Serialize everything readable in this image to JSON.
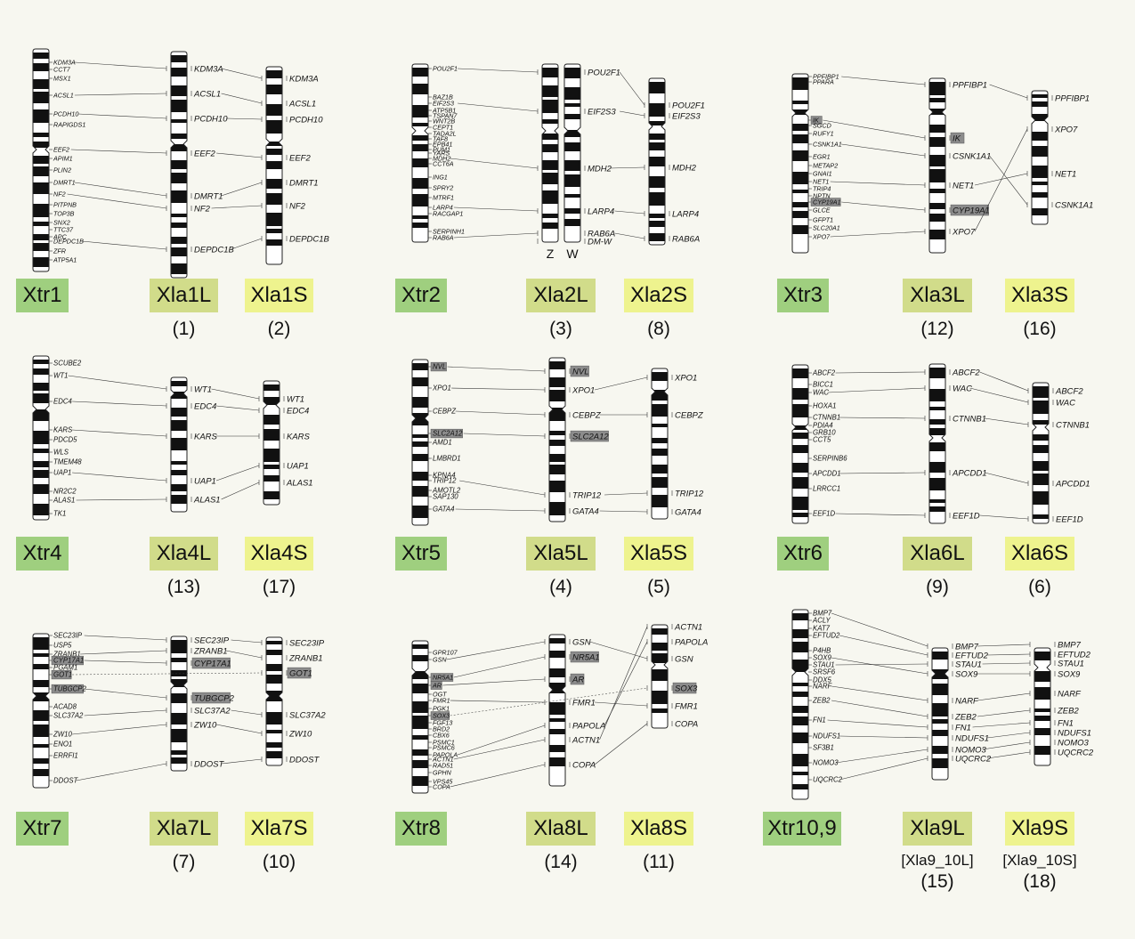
{
  "panels": [
    {
      "chroms": [
        {
          "label": "Xtr1",
          "genes": [
            "KDM3A",
            "CCT7",
            "MSX1",
            "ACSL1",
            "PCDH10",
            "RAPIGDS1",
            "EEF2",
            "APIM1",
            "PLIN2",
            "DMRT1",
            "NF2",
            "PITPNB",
            "TOP3B",
            "SNX2",
            "TTC37",
            "APC",
            "DEPDC1B",
            "ZFR",
            "ATP5A1"
          ]
        },
        {
          "label": "Xla1L",
          "num": "(1)",
          "genes": [
            "KDM3A",
            "ACSL1",
            "PCDH10",
            "EEF2",
            "DMRT1",
            "NF2",
            "DEPDC1B"
          ]
        },
        {
          "label": "Xla1S",
          "num": "(2)",
          "genes": [
            "KDM3A",
            "ACSL1",
            "PCDH10",
            "EEF2",
            "DMRT1",
            "NF2",
            "DEPDC1B"
          ]
        }
      ]
    },
    {
      "chroms": [
        {
          "label": "Xtr2",
          "genes": [
            "POU2F1",
            "BAZ1B",
            "EIF2S3",
            "ATP5B1",
            "TSPAN7",
            "WNT2B",
            "CEPT1",
            "TADA2L",
            "TAF8",
            "EPB41",
            "PUM1",
            "YARS",
            "MDH2",
            "CCT6A",
            "ING1",
            "SPRY2",
            "MTRF1",
            "LARP4",
            "RACGAP1",
            "SERPINH1",
            "RAB6A"
          ]
        },
        {
          "label": "Xla2L",
          "num": "(3)",
          "genes": [
            "POU2F1",
            "EIF2S3",
            "MDH2",
            "LARP4",
            "RAB6A",
            "DM-W"
          ],
          "sub": [
            "Z",
            "W"
          ]
        },
        {
          "label": "Xla2S",
          "num": "(8)",
          "genes": [
            "POU2F1",
            "EIF2S3",
            "MDH2",
            "LARP4",
            "RAB6A"
          ]
        }
      ]
    },
    {
      "chroms": [
        {
          "label": "Xtr3",
          "genes": [
            "PPFIBP1",
            "PPARA",
            "IK",
            "SGCD",
            "RUFY1",
            "CSNK1A1",
            "EGR1",
            "METAP2",
            "GNAI1",
            "NET1",
            "TRIP4",
            "NPTN",
            "CYP19A1",
            "GLCE",
            "GFPT1",
            "SLC20A1",
            "XPO7"
          ]
        },
        {
          "label": "Xla3L",
          "num": "(12)",
          "genes": [
            "PPFIBP1",
            "IK",
            "CSNK1A1",
            "NET1",
            "CYP19A1",
            "XPO7"
          ]
        },
        {
          "label": "Xla3S",
          "num": "(16)",
          "genes": [
            "PPFIBP1",
            "XPO7",
            "NET1",
            "CSNK1A1"
          ]
        }
      ]
    },
    {
      "chroms": [
        {
          "label": "Xtr4",
          "genes": [
            "SCUBE2",
            "WT1",
            "EDC4",
            "KARS",
            "PDCD5",
            "WLS",
            "TMEM48",
            "UAP1",
            "NR2C2",
            "ALAS1",
            "TK1"
          ]
        },
        {
          "label": "Xla4L",
          "num": "(13)",
          "genes": [
            "WT1",
            "EDC4",
            "KARS",
            "UAP1",
            "ALAS1"
          ]
        },
        {
          "label": "Xla4S",
          "num": "(17)",
          "genes": [
            "WT1",
            "EDC4",
            "KARS",
            "UAP1",
            "ALAS1"
          ]
        }
      ]
    },
    {
      "chroms": [
        {
          "label": "Xtr5",
          "genes": [
            "NVL",
            "XPO1",
            "CEBPZ",
            "SLC2A12",
            "AMD1",
            "LMBRD1",
            "KPNA4",
            "TRIP12",
            "AMOTL2",
            "SAP130",
            "GATA4"
          ]
        },
        {
          "label": "Xla5L",
          "num": "(4)",
          "genes": [
            "NVL",
            "XPO1",
            "CEBPZ",
            "SLC2A12",
            "TRIP12",
            "GATA4"
          ]
        },
        {
          "label": "Xla5S",
          "num": "(5)",
          "genes": [
            "XPO1",
            "CEBPZ",
            "TRIP12",
            "GATA4"
          ]
        }
      ]
    },
    {
      "chroms": [
        {
          "label": "Xtr6",
          "genes": [
            "ABCF2",
            "BICC1",
            "WAC",
            "HOXA1",
            "CTNNB1",
            "PDIA4",
            "GRB10",
            "CCT5",
            "SERPINB6",
            "APCDD1",
            "LRRCC1",
            "EEF1D"
          ]
        },
        {
          "label": "Xla6L",
          "num": "(9)",
          "genes": [
            "ABCF2",
            "WAC",
            "CTNNB1",
            "APCDD1",
            "EEF1D"
          ]
        },
        {
          "label": "Xla6S",
          "num": "(6)",
          "genes": [
            "ABCF2",
            "WAC",
            "CTNNB1",
            "APCDD1",
            "EEF1D"
          ]
        }
      ]
    },
    {
      "chroms": [
        {
          "label": "Xtr7",
          "genes": [
            "SEC23IP",
            "USP5",
            "ZRANB1",
            "CYP17A1",
            "PGAM1",
            "GOT1",
            "TUBGCP2",
            "ACAD8",
            "SLC37A2",
            "ZW10",
            "ENO1",
            "ERRFI1",
            "DDOST"
          ]
        },
        {
          "label": "Xla7L",
          "num": "(7)",
          "genes": [
            "SEC23IP",
            "ZRANB1",
            "CYP17A1",
            "TUBGCP2",
            "SLC37A2",
            "ZW10",
            "DDOST"
          ]
        },
        {
          "label": "Xla7S",
          "num": "(10)",
          "genes": [
            "SEC23IP",
            "ZRANB1",
            "GOT1",
            "SLC37A2",
            "ZW10",
            "DDOST"
          ]
        }
      ]
    },
    {
      "chroms": [
        {
          "label": "Xtr8",
          "genes": [
            "GPR107",
            "GSN",
            "NR5A1",
            "AR",
            "OGT",
            "FMR1",
            "PGK1",
            "SOX3",
            "FGF13",
            "BRD2",
            "CBX6",
            "PSMC1",
            "PSMC6",
            "PAPOLA",
            "ACTN1",
            "RAD51",
            "GPHN",
            "VPS45",
            "COPA"
          ]
        },
        {
          "label": "Xla8L",
          "num": "(14)",
          "genes": [
            "GSN",
            "NR5A1",
            "AR",
            "FMR1",
            "PAPOLA",
            "ACTN1",
            "COPA"
          ]
        },
        {
          "label": "Xla8S",
          "num": "(11)",
          "genes": [
            "ACTN1",
            "PAPOLA",
            "GSN",
            "SOX3",
            "FMR1",
            "COPA"
          ]
        }
      ]
    },
    {
      "chroms": [
        {
          "label": "Xtr10,9",
          "genes": [
            "BMP7",
            "ACLY",
            "KAT7",
            "EFTUD2",
            "P4HB",
            "SOX9",
            "STAU1",
            "SRSF6",
            "DDX5",
            "NARF",
            "ZEB2",
            "FN1",
            "NDUFS1",
            "SF3B1",
            "NOMO3",
            "UQCRC2"
          ]
        },
        {
          "label": "Xla9L",
          "num": "(15)",
          "sub": "[Xla9_10L]",
          "genes": [
            "BMP7",
            "EFTUD2",
            "STAU1",
            "SOX9",
            "NARF",
            "ZEB2",
            "FN1",
            "NDUFS1",
            "NOMO3",
            "UQCRC2"
          ]
        },
        {
          "label": "Xla9S",
          "num": "(18)",
          "sub": "[Xla9_10S]",
          "genes": [
            "BMP7",
            "EFTUD2",
            "STAU1",
            "SOX9",
            "NARF",
            "ZEB2",
            "FN1",
            "NDUFS1",
            "NOMO3",
            "UQCRC2"
          ]
        }
      ]
    }
  ],
  "highlighted_genes": [
    "IK",
    "CYP19A1",
    "NVL",
    "SLC2A12",
    "CYP17A1",
    "GOT1",
    "TUBGCP2",
    "NR5A1",
    "AR",
    "SOX3"
  ],
  "colors": {
    "xtr_label": "#9fcf7f",
    "l_label": "#d1dc8a",
    "s_label": "#eef38e",
    "background": "#f7f7f0",
    "highlight": "#8c8c8c"
  }
}
